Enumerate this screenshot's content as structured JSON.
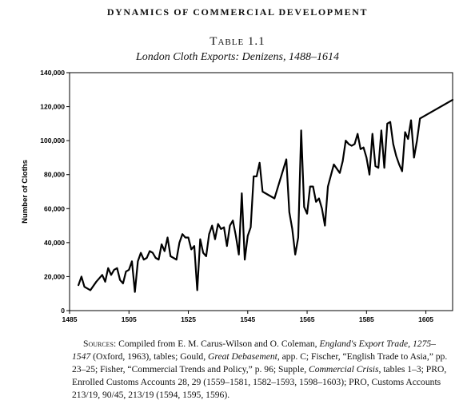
{
  "header": {
    "running_head": "DYNAMICS OF COMMERCIAL DEVELOPMENT",
    "table_label": "Table 1.1",
    "table_title": "London Cloth Exports: Denizens, 1488–1614"
  },
  "chart_data": {
    "type": "line",
    "title": "London Cloth Exports: Denizens, 1488–1614",
    "xlabel": "",
    "ylabel": "Number of Cloths",
    "xlim": [
      1485,
      1614
    ],
    "ylim": [
      0,
      140000
    ],
    "x_ticks": [
      1485,
      1505,
      1525,
      1545,
      1565,
      1585,
      1605
    ],
    "y_ticks": [
      0,
      20000,
      40000,
      60000,
      80000,
      100000,
      120000,
      140000
    ],
    "y_tick_labels": [
      "0",
      "20,000",
      "40,000",
      "60,000",
      "80,000",
      "100,000",
      "120,000",
      "140,000"
    ],
    "grid": false,
    "legend": "none",
    "line_color": "#000000",
    "series": [
      {
        "x": [
          1488,
          1489,
          1490,
          1492,
          1494,
          1496,
          1497,
          1498,
          1499,
          1500,
          1501,
          1502,
          1503,
          1504,
          1505,
          1506,
          1507,
          1508,
          1509,
          1510,
          1511,
          1512,
          1513,
          1514,
          1515,
          1516,
          1517,
          1518,
          1519,
          1520,
          1521,
          1522,
          1523,
          1524,
          1525,
          1526,
          1527,
          1528,
          1529,
          1530,
          1531,
          1532,
          1533,
          1534,
          1535,
          1536,
          1537,
          1538,
          1539,
          1540,
          1541,
          1542,
          1543,
          1544,
          1545,
          1546,
          1547,
          1548,
          1549,
          1550,
          1554,
          1558,
          1559,
          1560,
          1561,
          1562,
          1563,
          1564,
          1565,
          1566,
          1567,
          1568,
          1569,
          1570,
          1571,
          1572,
          1574,
          1576,
          1577,
          1578,
          1579,
          1580,
          1581,
          1582,
          1583,
          1584,
          1585,
          1586,
          1587,
          1588,
          1589,
          1590,
          1591,
          1592,
          1593,
          1594,
          1595,
          1596,
          1597,
          1598,
          1599,
          1600,
          1601,
          1602,
          1603,
          1604,
          1605,
          1614
        ],
        "y": [
          15000,
          20000,
          14000,
          12000,
          17000,
          21000,
          17000,
          25000,
          21000,
          24000,
          25000,
          18000,
          16000,
          23000,
          24000,
          29000,
          11000,
          29000,
          34000,
          30000,
          31000,
          35000,
          34000,
          31000,
          30000,
          39000,
          35000,
          43000,
          32000,
          31000,
          30000,
          40000,
          45000,
          43000,
          43000,
          36000,
          38000,
          12000,
          42000,
          34000,
          32000,
          45000,
          50000,
          42000,
          51000,
          48000,
          49000,
          38000,
          50000,
          53000,
          44000,
          33000,
          69000,
          30000,
          44000,
          49000,
          79000,
          79000,
          87000,
          70000,
          66000,
          89000,
          58000,
          48000,
          33000,
          43000,
          106000,
          61000,
          57000,
          73000,
          73000,
          64000,
          66000,
          60000,
          50000,
          73000,
          86000,
          81000,
          88000,
          100000,
          98000,
          97000,
          98000,
          104000,
          95000,
          96000,
          90000,
          80000,
          104000,
          85000,
          84000,
          106000,
          84000,
          110000,
          111000,
          98000,
          91000,
          86000,
          82000,
          105000,
          101000,
          112000,
          90000,
          100000,
          113000,
          114000,
          115000,
          124000
        ]
      }
    ]
  },
  "sources": {
    "label": "Sources",
    "text_1": ": Compiled from E. M. Carus-Wilson and O. Coleman, ",
    "book_1": "England's Export Trade, 1275–1547",
    "text_2": " (Oxford, 1963), tables; Gould, ",
    "book_2": "Great Debasement",
    "text_3": ", app. C; Fischer, “English Trade to Asia,” pp. 23–25; Fisher, “Commercial Trends and Policy,” p. 96; Supple, ",
    "book_3": "Commercial Crisis",
    "text_4": ", tables 1–3; PRO, Enrolled Customs Accounts 28, 29 (1559–1581, 1582–1593, 1598–1603); PRO, Customs Accounts 213/19, 90/45, 213/19 (1594, 1595, 1596)."
  }
}
